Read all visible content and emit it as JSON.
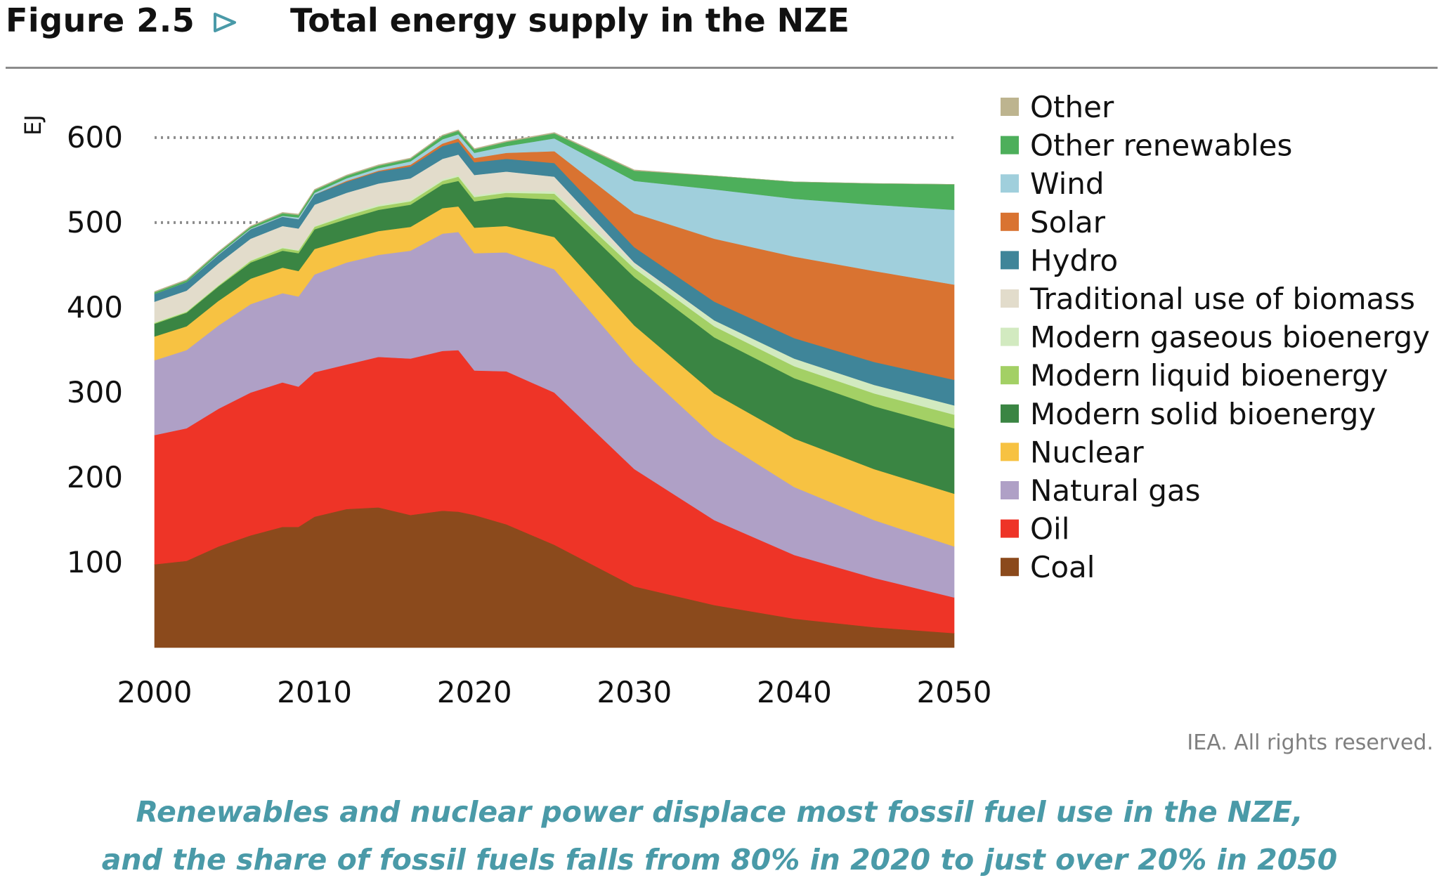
{
  "figure": {
    "label": "Figure 2.5",
    "title": "Total energy supply in the NZE",
    "arrow_color": "#4a9aa8"
  },
  "copyright": "IEA. All rights reserved.",
  "caption": {
    "line1": "Renewables and nuclear power displace most fossil fuel use in the NZE,",
    "line2": "and the share of fossil fuels falls from 80% in 2020 to just over 20% in 2050"
  },
  "chart_data": {
    "type": "area",
    "stacked": true,
    "title": "Total energy supply in the NZE",
    "ylabel": "EJ",
    "xlabel": "",
    "xlim": [
      2000,
      2050
    ],
    "ylim": [
      0,
      600
    ],
    "x_ticks": [
      2000,
      2010,
      2020,
      2030,
      2040,
      2050
    ],
    "y_ticks": [
      100,
      200,
      300,
      400,
      500,
      600
    ],
    "reference_lines": [
      500,
      600
    ],
    "legend_position": "right",
    "x": [
      2000,
      2002,
      2004,
      2006,
      2008,
      2009,
      2010,
      2012,
      2014,
      2016,
      2018,
      2019,
      2020,
      2022,
      2025,
      2030,
      2035,
      2040,
      2045,
      2050
    ],
    "series": [
      {
        "name": "Coal",
        "color": "#8b4a1c",
        "values": [
          98,
          102,
          119,
          132,
          142,
          142,
          154,
          163,
          165,
          156,
          161,
          160,
          156,
          145,
          121,
          72,
          50,
          34,
          24,
          17
        ]
      },
      {
        "name": "Oil",
        "color": "#ee3427",
        "values": [
          152,
          156,
          162,
          168,
          170,
          165,
          170,
          170,
          177,
          184,
          188,
          190,
          170,
          180,
          179,
          138,
          100,
          75,
          58,
          42
        ]
      },
      {
        "name": "Natural gas",
        "color": "#afa0c6",
        "values": [
          88,
          92,
          98,
          104,
          105,
          106,
          115,
          120,
          120,
          127,
          138,
          139,
          138,
          140,
          145,
          125,
          98,
          80,
          68,
          60
        ]
      },
      {
        "name": "Nuclear",
        "color": "#f7c242",
        "values": [
          28,
          28,
          29,
          30,
          30,
          30,
          30,
          27,
          28,
          28,
          30,
          30,
          30,
          31,
          38,
          44,
          51,
          57,
          60,
          62
        ]
      },
      {
        "name": "Modern solid bioenergy",
        "color": "#3a8543",
        "values": [
          15,
          16,
          17,
          19,
          20,
          21,
          23,
          24,
          25,
          26,
          28,
          30,
          31,
          34,
          44,
          57,
          66,
          71,
          74,
          77
        ]
      },
      {
        "name": "Modern liquid bioenergy",
        "color": "#a3d065",
        "values": [
          1,
          1,
          1,
          2,
          3,
          3,
          3,
          4,
          4,
          4,
          4,
          5,
          5,
          5,
          7,
          10,
          13,
          14,
          15,
          16
        ]
      },
      {
        "name": "Modern gaseous bioenergy",
        "color": "#d2eac0",
        "values": [
          1,
          1,
          1,
          1,
          1,
          1,
          1,
          2,
          2,
          2,
          2,
          2,
          2,
          2,
          3,
          5,
          7,
          9,
          10,
          11
        ]
      },
      {
        "name": "Traditional use of biomass",
        "color": "#e2dccb",
        "values": [
          24,
          24,
          25,
          25,
          25,
          25,
          25,
          25,
          25,
          25,
          24,
          24,
          24,
          23,
          17,
          2,
          0,
          0,
          0,
          0
        ]
      },
      {
        "name": "Hydro",
        "color": "#3f8599",
        "values": [
          9,
          10,
          10,
          11,
          11,
          11,
          12,
          13,
          14,
          14,
          15,
          15,
          15,
          15,
          16,
          18,
          22,
          24,
          27,
          30
        ]
      },
      {
        "name": "Solar",
        "color": "#d97331",
        "values": [
          0,
          0,
          0,
          0,
          0,
          0,
          0,
          1,
          1,
          2,
          3,
          4,
          5,
          7,
          14,
          40,
          74,
          96,
          107,
          112
        ]
      },
      {
        "name": "Wind",
        "color": "#a0cfdc",
        "values": [
          0,
          0,
          1,
          1,
          1,
          2,
          2,
          3,
          3,
          4,
          5,
          5,
          6,
          8,
          15,
          38,
          58,
          68,
          78,
          88
        ]
      },
      {
        "name": "Other renewables",
        "color": "#4daf5b",
        "values": [
          2,
          2,
          2,
          2,
          3,
          3,
          3,
          3,
          3,
          3,
          4,
          4,
          4,
          5,
          6,
          12,
          16,
          20,
          25,
          30
        ]
      },
      {
        "name": "Other",
        "color": "#bdb48f",
        "values": [
          1,
          1,
          1,
          1,
          1,
          1,
          1,
          1,
          1,
          1,
          1,
          1,
          1,
          1,
          1,
          1,
          0,
          0,
          0,
          0
        ]
      }
    ]
  }
}
